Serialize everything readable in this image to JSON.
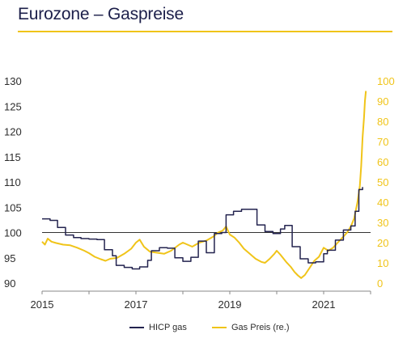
{
  "title": "Eurozone – Gaspreise",
  "colors": {
    "hicp": "#23234f",
    "gas": "#f0c419",
    "baseline": "#333333",
    "accent": "#f0c419"
  },
  "chart_data": {
    "type": "line",
    "title": "Eurozone – Gaspreise",
    "x_ticks": [
      "2015",
      "2017",
      "2019",
      "2021"
    ],
    "x_range": [
      2015.0,
      2022.0
    ],
    "left_axis": {
      "ticks": [
        "90",
        "95",
        "100",
        "105",
        "110",
        "115",
        "120",
        "125",
        "130"
      ],
      "range": [
        90,
        130
      ]
    },
    "right_axis": {
      "ticks": [
        "0",
        "10",
        "20",
        "30",
        "40",
        "50",
        "60",
        "70",
        "80",
        "90",
        "100"
      ],
      "range": [
        0,
        100
      ]
    },
    "reference_line": 100,
    "grid": false,
    "legend_position": "bottom",
    "series": [
      {
        "name": "HICP gas",
        "axis": "left",
        "step": true,
        "points": [
          [
            2015.0,
            102.7
          ],
          [
            2015.17,
            102.4
          ],
          [
            2015.33,
            101.0
          ],
          [
            2015.5,
            99.5
          ],
          [
            2015.67,
            99.0
          ],
          [
            2015.83,
            98.8
          ],
          [
            2016.0,
            98.7
          ],
          [
            2016.17,
            98.6
          ],
          [
            2016.33,
            96.6
          ],
          [
            2016.5,
            95.4
          ],
          [
            2016.58,
            93.5
          ],
          [
            2016.75,
            93.1
          ],
          [
            2016.92,
            92.8
          ],
          [
            2017.08,
            93.2
          ],
          [
            2017.25,
            94.5
          ],
          [
            2017.33,
            96.4
          ],
          [
            2017.5,
            97.0
          ],
          [
            2017.67,
            96.9
          ],
          [
            2017.83,
            95.0
          ],
          [
            2018.0,
            94.3
          ],
          [
            2018.17,
            95.1
          ],
          [
            2018.33,
            98.3
          ],
          [
            2018.5,
            96.0
          ],
          [
            2018.67,
            99.8
          ],
          [
            2018.83,
            100.0
          ],
          [
            2018.92,
            103.5
          ],
          [
            2019.08,
            104.2
          ],
          [
            2019.25,
            104.6
          ],
          [
            2019.42,
            104.6
          ],
          [
            2019.58,
            101.5
          ],
          [
            2019.75,
            100.2
          ],
          [
            2019.92,
            99.8
          ],
          [
            2020.08,
            100.7
          ],
          [
            2020.17,
            101.4
          ],
          [
            2020.33,
            97.2
          ],
          [
            2020.5,
            94.8
          ],
          [
            2020.67,
            94.0
          ],
          [
            2020.83,
            94.2
          ],
          [
            2021.0,
            95.8
          ],
          [
            2021.08,
            96.5
          ],
          [
            2021.25,
            98.5
          ],
          [
            2021.42,
            100.5
          ],
          [
            2021.58,
            101.3
          ],
          [
            2021.67,
            104.2
          ],
          [
            2021.75,
            108.5
          ],
          [
            2021.83,
            109.0
          ]
        ]
      },
      {
        "name": "Gas Preis (re.)",
        "axis": "right",
        "step": false,
        "points": [
          [
            2015.0,
            20.5
          ],
          [
            2015.06,
            19.0
          ],
          [
            2015.12,
            22.0
          ],
          [
            2015.2,
            20.5
          ],
          [
            2015.3,
            19.8
          ],
          [
            2015.45,
            19.0
          ],
          [
            2015.6,
            18.7
          ],
          [
            2015.75,
            17.5
          ],
          [
            2015.9,
            16.0
          ],
          [
            2016.0,
            14.8
          ],
          [
            2016.12,
            13.0
          ],
          [
            2016.25,
            11.8
          ],
          [
            2016.35,
            11.0
          ],
          [
            2016.45,
            12.0
          ],
          [
            2016.6,
            12.5
          ],
          [
            2016.75,
            14.5
          ],
          [
            2016.9,
            17.0
          ],
          [
            2017.0,
            20.0
          ],
          [
            2017.08,
            21.5
          ],
          [
            2017.17,
            18.0
          ],
          [
            2017.3,
            15.5
          ],
          [
            2017.45,
            15.0
          ],
          [
            2017.6,
            14.5
          ],
          [
            2017.75,
            16.0
          ],
          [
            2017.92,
            19.0
          ],
          [
            2018.0,
            20.0
          ],
          [
            2018.1,
            19.0
          ],
          [
            2018.2,
            18.0
          ],
          [
            2018.35,
            20.0
          ],
          [
            2018.5,
            21.0
          ],
          [
            2018.65,
            23.0
          ],
          [
            2018.75,
            25.0
          ],
          [
            2018.85,
            26.0
          ],
          [
            2018.92,
            28.0
          ],
          [
            2019.0,
            24.0
          ],
          [
            2019.1,
            22.5
          ],
          [
            2019.2,
            20.0
          ],
          [
            2019.3,
            17.0
          ],
          [
            2019.4,
            15.0
          ],
          [
            2019.55,
            12.0
          ],
          [
            2019.67,
            10.5
          ],
          [
            2019.75,
            10.0
          ],
          [
            2019.85,
            12.0
          ],
          [
            2019.95,
            14.5
          ],
          [
            2020.0,
            16.0
          ],
          [
            2020.08,
            14.0
          ],
          [
            2020.2,
            10.5
          ],
          [
            2020.3,
            8.0
          ],
          [
            2020.38,
            5.5
          ],
          [
            2020.45,
            3.8
          ],
          [
            2020.52,
            2.5
          ],
          [
            2020.6,
            4.0
          ],
          [
            2020.7,
            7.5
          ],
          [
            2020.8,
            11.0
          ],
          [
            2020.9,
            13.0
          ],
          [
            2021.0,
            17.5
          ],
          [
            2021.1,
            16.0
          ],
          [
            2021.2,
            17.5
          ],
          [
            2021.3,
            20.0
          ],
          [
            2021.4,
            22.5
          ],
          [
            2021.5,
            25.0
          ],
          [
            2021.58,
            28.0
          ],
          [
            2021.65,
            32.0
          ],
          [
            2021.72,
            40.0
          ],
          [
            2021.77,
            48.0
          ],
          [
            2021.8,
            58.0
          ],
          [
            2021.83,
            72.0
          ],
          [
            2021.86,
            82.0
          ],
          [
            2021.88,
            90.0
          ],
          [
            2021.9,
            95.0
          ]
        ]
      }
    ]
  }
}
